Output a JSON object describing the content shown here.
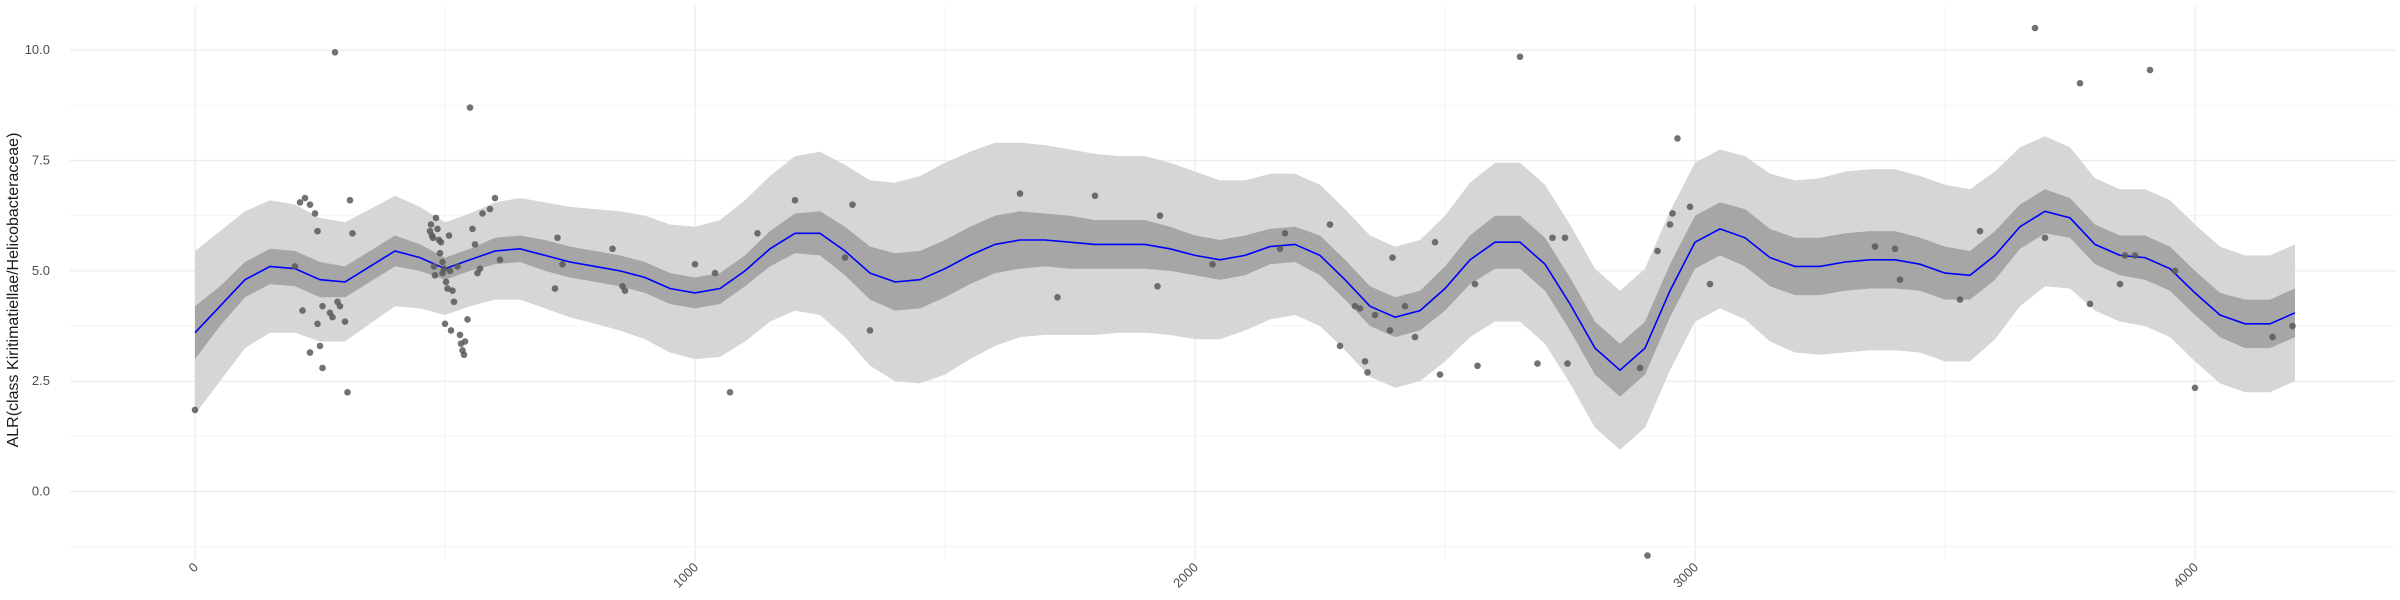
{
  "chart_data": {
    "type": "scatter",
    "title": "",
    "xlabel": "",
    "ylabel": "ALR(class Kiritimatiellae/Helicobacteraceae)",
    "xlim": [
      -250,
      4400
    ],
    "ylim": [
      -1.55,
      11.0
    ],
    "x_ticks": [
      0,
      1000,
      2000,
      3000,
      4000
    ],
    "x_tick_labels": [
      "0",
      "1000",
      "2000",
      "3000",
      "4000"
    ],
    "y_ticks": [
      0.0,
      2.5,
      5.0,
      7.5,
      10.0
    ],
    "y_tick_labels": [
      "0.0",
      "2.5",
      "5.0",
      "7.5",
      "10.0"
    ],
    "grid": true,
    "legend": "none",
    "colors": {
      "point": "#595959",
      "line": "#0000ff",
      "inner_band": "#a6a6a6",
      "outer_band": "#d6d6d6",
      "grid_major": "#ebebeb",
      "grid_minor": "#f4f4f4"
    },
    "points": [
      [
        0,
        1.85
      ],
      [
        200,
        5.1
      ],
      [
        210,
        6.55
      ],
      [
        215,
        4.1
      ],
      [
        220,
        6.65
      ],
      [
        230,
        6.5
      ],
      [
        240,
        6.3
      ],
      [
        245,
        5.9
      ],
      [
        230,
        3.15
      ],
      [
        245,
        3.8
      ],
      [
        250,
        3.3
      ],
      [
        255,
        2.8
      ],
      [
        255,
        4.2
      ],
      [
        270,
        4.05
      ],
      [
        275,
        3.95
      ],
      [
        285,
        4.3
      ],
      [
        290,
        4.2
      ],
      [
        280,
        9.95
      ],
      [
        300,
        3.85
      ],
      [
        305,
        2.25
      ],
      [
        310,
        6.6
      ],
      [
        315,
        5.85
      ],
      [
        470,
        5.9
      ],
      [
        472,
        6.05
      ],
      [
        474,
        5.8
      ],
      [
        476,
        5.75
      ],
      [
        478,
        5.1
      ],
      [
        480,
        4.9
      ],
      [
        482,
        6.2
      ],
      [
        485,
        5.95
      ],
      [
        488,
        5.7
      ],
      [
        490,
        5.4
      ],
      [
        492,
        5.65
      ],
      [
        495,
        5.2
      ],
      [
        495,
        4.95
      ],
      [
        498,
        5.05
      ],
      [
        500,
        3.8
      ],
      [
        502,
        4.75
      ],
      [
        505,
        4.6
      ],
      [
        508,
        5.8
      ],
      [
        510,
        5.0
      ],
      [
        512,
        3.65
      ],
      [
        515,
        4.55
      ],
      [
        518,
        4.3
      ],
      [
        525,
        5.1
      ],
      [
        530,
        3.55
      ],
      [
        532,
        3.35
      ],
      [
        535,
        3.2
      ],
      [
        538,
        3.1
      ],
      [
        540,
        3.4
      ],
      [
        545,
        3.9
      ],
      [
        550,
        8.7
      ],
      [
        555,
        5.95
      ],
      [
        560,
        5.6
      ],
      [
        565,
        4.95
      ],
      [
        570,
        5.05
      ],
      [
        575,
        6.3
      ],
      [
        590,
        6.4
      ],
      [
        600,
        6.65
      ],
      [
        610,
        5.25
      ],
      [
        720,
        4.6
      ],
      [
        725,
        5.75
      ],
      [
        735,
        5.15
      ],
      [
        835,
        5.5
      ],
      [
        855,
        4.65
      ],
      [
        860,
        4.55
      ],
      [
        1000,
        5.15
      ],
      [
        1040,
        4.95
      ],
      [
        1070,
        2.25
      ],
      [
        1125,
        5.85
      ],
      [
        1200,
        6.6
      ],
      [
        1300,
        5.3
      ],
      [
        1315,
        6.5
      ],
      [
        1350,
        3.65
      ],
      [
        1650,
        6.75
      ],
      [
        1725,
        4.4
      ],
      [
        1800,
        6.7
      ],
      [
        1925,
        4.65
      ],
      [
        1930,
        6.25
      ],
      [
        2035,
        5.15
      ],
      [
        2170,
        5.5
      ],
      [
        2180,
        5.85
      ],
      [
        2270,
        6.05
      ],
      [
        2290,
        3.3
      ],
      [
        2320,
        4.2
      ],
      [
        2330,
        4.15
      ],
      [
        2340,
        2.95
      ],
      [
        2345,
        2.7
      ],
      [
        2360,
        4.0
      ],
      [
        2390,
        3.65
      ],
      [
        2395,
        5.3
      ],
      [
        2420,
        4.2
      ],
      [
        2440,
        3.5
      ],
      [
        2480,
        5.65
      ],
      [
        2490,
        2.65
      ],
      [
        2560,
        4.7
      ],
      [
        2565,
        2.85
      ],
      [
        2650,
        9.85
      ],
      [
        2685,
        2.9
      ],
      [
        2715,
        5.75
      ],
      [
        2740,
        5.75
      ],
      [
        2745,
        2.9
      ],
      [
        2890,
        2.8
      ],
      [
        2905,
        -1.45
      ],
      [
        2925,
        5.45
      ],
      [
        2950,
        6.05
      ],
      [
        2955,
        6.3
      ],
      [
        2965,
        8.0
      ],
      [
        2990,
        6.45
      ],
      [
        3030,
        4.7
      ],
      [
        3360,
        5.55
      ],
      [
        3400,
        5.5
      ],
      [
        3410,
        4.8
      ],
      [
        3530,
        4.35
      ],
      [
        3570,
        5.9
      ],
      [
        3680,
        10.5
      ],
      [
        3700,
        5.75
      ],
      [
        3770,
        9.25
      ],
      [
        3790,
        4.25
      ],
      [
        3850,
        4.7
      ],
      [
        3860,
        5.35
      ],
      [
        3880,
        5.35
      ],
      [
        3910,
        9.55
      ],
      [
        3960,
        5.0
      ],
      [
        4000,
        2.35
      ],
      [
        4155,
        3.5
      ],
      [
        4195,
        3.75
      ]
    ],
    "fit_line": [
      [
        0,
        3.6
      ],
      [
        50,
        4.2
      ],
      [
        100,
        4.8
      ],
      [
        150,
        5.1
      ],
      [
        200,
        5.05
      ],
      [
        250,
        4.8
      ],
      [
        300,
        4.75
      ],
      [
        350,
        5.1
      ],
      [
        400,
        5.45
      ],
      [
        450,
        5.3
      ],
      [
        500,
        5.05
      ],
      [
        550,
        5.25
      ],
      [
        600,
        5.45
      ],
      [
        650,
        5.5
      ],
      [
        700,
        5.35
      ],
      [
        750,
        5.2
      ],
      [
        800,
        5.1
      ],
      [
        850,
        5.0
      ],
      [
        900,
        4.85
      ],
      [
        950,
        4.6
      ],
      [
        1000,
        4.5
      ],
      [
        1050,
        4.6
      ],
      [
        1100,
        5.0
      ],
      [
        1150,
        5.5
      ],
      [
        1200,
        5.85
      ],
      [
        1250,
        5.85
      ],
      [
        1300,
        5.45
      ],
      [
        1350,
        4.95
      ],
      [
        1400,
        4.75
      ],
      [
        1450,
        4.8
      ],
      [
        1500,
        5.05
      ],
      [
        1550,
        5.35
      ],
      [
        1600,
        5.6
      ],
      [
        1650,
        5.7
      ],
      [
        1700,
        5.7
      ],
      [
        1750,
        5.65
      ],
      [
        1800,
        5.6
      ],
      [
        1850,
        5.6
      ],
      [
        1900,
        5.6
      ],
      [
        1950,
        5.5
      ],
      [
        2000,
        5.35
      ],
      [
        2050,
        5.25
      ],
      [
        2100,
        5.35
      ],
      [
        2150,
        5.55
      ],
      [
        2200,
        5.6
      ],
      [
        2250,
        5.35
      ],
      [
        2300,
        4.8
      ],
      [
        2350,
        4.2
      ],
      [
        2400,
        3.95
      ],
      [
        2450,
        4.1
      ],
      [
        2500,
        4.6
      ],
      [
        2550,
        5.25
      ],
      [
        2600,
        5.65
      ],
      [
        2650,
        5.65
      ],
      [
        2700,
        5.15
      ],
      [
        2750,
        4.25
      ],
      [
        2800,
        3.25
      ],
      [
        2850,
        2.75
      ],
      [
        2900,
        3.25
      ],
      [
        2950,
        4.55
      ],
      [
        3000,
        5.65
      ],
      [
        3050,
        5.95
      ],
      [
        3100,
        5.75
      ],
      [
        3150,
        5.3
      ],
      [
        3200,
        5.1
      ],
      [
        3250,
        5.1
      ],
      [
        3300,
        5.2
      ],
      [
        3350,
        5.25
      ],
      [
        3400,
        5.25
      ],
      [
        3450,
        5.15
      ],
      [
        3500,
        4.95
      ],
      [
        3550,
        4.9
      ],
      [
        3600,
        5.35
      ],
      [
        3650,
        6.0
      ],
      [
        3700,
        6.35
      ],
      [
        3750,
        6.2
      ],
      [
        3800,
        5.6
      ],
      [
        3850,
        5.35
      ],
      [
        3900,
        5.3
      ],
      [
        3950,
        5.05
      ],
      [
        4000,
        4.5
      ],
      [
        4050,
        4.0
      ],
      [
        4100,
        3.8
      ],
      [
        4150,
        3.8
      ],
      [
        4200,
        4.05
      ]
    ],
    "inner_band_halfwidth": [
      0.6,
      0.45,
      0.4,
      0.4,
      0.4,
      0.4,
      0.35,
      0.35,
      0.35,
      0.3,
      0.25,
      0.25,
      0.3,
      0.3,
      0.35,
      0.35,
      0.35,
      0.35,
      0.35,
      0.35,
      0.35,
      0.35,
      0.35,
      0.4,
      0.45,
      0.5,
      0.55,
      0.6,
      0.65,
      0.65,
      0.65,
      0.65,
      0.65,
      0.65,
      0.6,
      0.6,
      0.55,
      0.55,
      0.55,
      0.5,
      0.45,
      0.45,
      0.45,
      0.4,
      0.4,
      0.45,
      0.45,
      0.45,
      0.45,
      0.45,
      0.5,
      0.55,
      0.6,
      0.6,
      0.6,
      0.6,
      0.6,
      0.6,
      0.6,
      0.6,
      0.6,
      0.6,
      0.65,
      0.65,
      0.65,
      0.65,
      0.65,
      0.65,
      0.65,
      0.6,
      0.6,
      0.55,
      0.55,
      0.5,
      0.5,
      0.45,
      0.45,
      0.45,
      0.5,
      0.5,
      0.5,
      0.5,
      0.55,
      0.55,
      0.55
    ],
    "outer_band_halfwidth": [
      1.85,
      1.7,
      1.55,
      1.5,
      1.45,
      1.4,
      1.35,
      1.3,
      1.25,
      1.15,
      1.05,
      1.05,
      1.1,
      1.15,
      1.2,
      1.25,
      1.3,
      1.35,
      1.4,
      1.45,
      1.5,
      1.55,
      1.6,
      1.65,
      1.75,
      1.85,
      1.95,
      2.1,
      2.25,
      2.35,
      2.4,
      2.35,
      2.3,
      2.2,
      2.15,
      2.1,
      2.05,
      2.0,
      2.0,
      1.95,
      1.9,
      1.8,
      1.7,
      1.65,
      1.6,
      1.6,
      1.6,
      1.6,
      1.6,
      1.6,
      1.65,
      1.75,
      1.8,
      1.8,
      1.8,
      1.8,
      1.8,
      1.8,
      1.8,
      1.8,
      1.8,
      1.8,
      1.85,
      1.9,
      1.95,
      2.0,
      2.05,
      2.05,
      2.05,
      2.0,
      2.0,
      1.95,
      1.9,
      1.8,
      1.7,
      1.6,
      1.5,
      1.5,
      1.55,
      1.55,
      1.55,
      1.55,
      1.55,
      1.55,
      1.55
    ]
  }
}
